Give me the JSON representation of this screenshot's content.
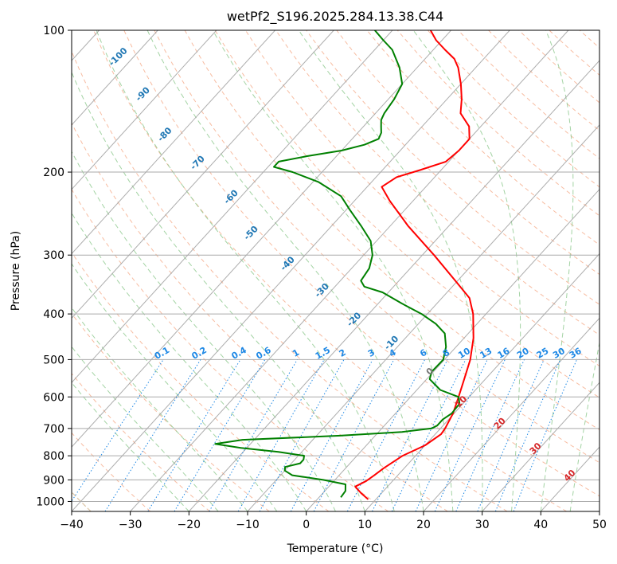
{
  "chart_data": {
    "type": "line",
    "subtype": "skew-t log-p",
    "title": "wetPf2_S196.2025.284.13.38.C44",
    "xlabel": "Temperature (°C)",
    "ylabel": "Pressure (hPa)",
    "xlim": [
      -40,
      50
    ],
    "ylim": [
      1050,
      100
    ],
    "y_scale": "log",
    "grid": true,
    "x_ticks": [
      "−40",
      "−30",
      "−20",
      "−10",
      "0",
      "10",
      "20",
      "30",
      "40",
      "50"
    ],
    "y_ticks": [
      "100",
      "200",
      "300",
      "400",
      "500",
      "600",
      "700",
      "800",
      "900",
      "1000"
    ],
    "colors": {
      "temperature": "#ff0000",
      "dewpoint": "#008000",
      "dry_adiabats": "#f4a582",
      "moist_adiabats": "#8cc88c",
      "mixing_ratio": "#1e88e5",
      "isotherms": "#999999",
      "pseudo_adiabat": "#d2b48c"
    },
    "series": [
      {
        "name": "",
        "role": "temperature",
        "points": [
          {
            "p": 990,
            "t": 8.7
          },
          {
            "p": 960,
            "t": 6.5
          },
          {
            "p": 930,
            "t": 4.5
          },
          {
            "p": 905,
            "t": 5.5
          },
          {
            "p": 880,
            "t": 6.0
          },
          {
            "p": 850,
            "t": 6.5
          },
          {
            "p": 800,
            "t": 7.8
          },
          {
            "p": 760,
            "t": 10.0
          },
          {
            "p": 720,
            "t": 11.0
          },
          {
            "p": 700,
            "t": 10.8
          },
          {
            "p": 650,
            "t": 9.8
          },
          {
            "p": 600,
            "t": 8.2
          },
          {
            "p": 550,
            "t": 6.4
          },
          {
            "p": 500,
            "t": 4.4
          },
          {
            "p": 450,
            "t": 1.6
          },
          {
            "p": 400,
            "t": -2.2
          },
          {
            "p": 370,
            "t": -5.3
          },
          {
            "p": 340,
            "t": -10.4
          },
          {
            "p": 300,
            "t": -18.0
          },
          {
            "p": 260,
            "t": -27.0
          },
          {
            "p": 230,
            "t": -34.0
          },
          {
            "p": 215,
            "t": -37.5
          },
          {
            "p": 205,
            "t": -36.5
          },
          {
            "p": 198,
            "t": -33.6
          },
          {
            "p": 190,
            "t": -30.5
          },
          {
            "p": 180,
            "t": -30.0
          },
          {
            "p": 170,
            "t": -30.0
          },
          {
            "p": 160,
            "t": -32.0
          },
          {
            "p": 150,
            "t": -35.5
          },
          {
            "p": 140,
            "t": -37.5
          },
          {
            "p": 130,
            "t": -40.0
          },
          {
            "p": 120,
            "t": -43.0
          },
          {
            "p": 115,
            "t": -45.0
          },
          {
            "p": 110,
            "t": -48.0
          },
          {
            "p": 105,
            "t": -51.0
          },
          {
            "p": 100,
            "t": -53.5
          }
        ]
      },
      {
        "name": "",
        "role": "dewpoint",
        "points": [
          {
            "p": 980,
            "t": 3.7
          },
          {
            "p": 950,
            "t": 3.5
          },
          {
            "p": 920,
            "t": 2.5
          },
          {
            "p": 900,
            "t": -2.0
          },
          {
            "p": 880,
            "t": -8.0
          },
          {
            "p": 860,
            "t": -10.0
          },
          {
            "p": 845,
            "t": -10.5
          },
          {
            "p": 830,
            "t": -8.5
          },
          {
            "p": 815,
            "t": -8.5
          },
          {
            "p": 800,
            "t": -9.0
          },
          {
            "p": 785,
            "t": -14.0
          },
          {
            "p": 770,
            "t": -21.0
          },
          {
            "p": 755,
            "t": -26.0
          },
          {
            "p": 740,
            "t": -22.0
          },
          {
            "p": 725,
            "t": -6.0
          },
          {
            "p": 712,
            "t": 4.0
          },
          {
            "p": 700,
            "t": 8.5
          },
          {
            "p": 690,
            "t": 9.0
          },
          {
            "p": 670,
            "t": 9.0
          },
          {
            "p": 650,
            "t": 9.6
          },
          {
            "p": 620,
            "t": 9.4
          },
          {
            "p": 600,
            "t": 8.2
          },
          {
            "p": 580,
            "t": 4.0
          },
          {
            "p": 550,
            "t": 0.5
          },
          {
            "p": 530,
            "t": -0.3
          },
          {
            "p": 500,
            "t": -0.2
          },
          {
            "p": 470,
            "t": -1.7
          },
          {
            "p": 440,
            "t": -4.0
          },
          {
            "p": 420,
            "t": -7.0
          },
          {
            "p": 400,
            "t": -11.0
          },
          {
            "p": 380,
            "t": -16.0
          },
          {
            "p": 360,
            "t": -21.0
          },
          {
            "p": 350,
            "t": -25.0
          },
          {
            "p": 340,
            "t": -26.5
          },
          {
            "p": 320,
            "t": -27.0
          },
          {
            "p": 300,
            "t": -28.5
          },
          {
            "p": 280,
            "t": -31.0
          },
          {
            "p": 260,
            "t": -35.0
          },
          {
            "p": 240,
            "t": -39.5
          },
          {
            "p": 225,
            "t": -43.0
          },
          {
            "p": 210,
            "t": -49.0
          },
          {
            "p": 200,
            "t": -55.0
          },
          {
            "p": 195,
            "t": -59.0
          },
          {
            "p": 190,
            "t": -59.0
          },
          {
            "p": 185,
            "t": -55.0
          },
          {
            "p": 180,
            "t": -50.0
          },
          {
            "p": 175,
            "t": -47.0
          },
          {
            "p": 170,
            "t": -45.5
          },
          {
            "p": 165,
            "t": -46.0
          },
          {
            "p": 160,
            "t": -47.0
          },
          {
            "p": 155,
            "t": -48.0
          },
          {
            "p": 150,
            "t": -48.5
          },
          {
            "p": 140,
            "t": -49.0
          },
          {
            "p": 130,
            "t": -50.0
          },
          {
            "p": 120,
            "t": -53.0
          },
          {
            "p": 110,
            "t": -57.0
          },
          {
            "p": 105,
            "t": -60.0
          },
          {
            "p": 100,
            "t": -63.0
          }
        ]
      }
    ],
    "moist_adiabat_labels": [
      {
        "text": "-100",
        "p": 115,
        "t": -102
      },
      {
        "text": "-90",
        "p": 138,
        "t": -92
      },
      {
        "text": "-80",
        "p": 168,
        "t": -82
      },
      {
        "text": "-70",
        "p": 193,
        "t": -72
      },
      {
        "text": "-60",
        "p": 228,
        "t": -61
      },
      {
        "text": "-50",
        "p": 272,
        "t": -52
      },
      {
        "text": "-40",
        "p": 316,
        "t": -41
      },
      {
        "text": "-30",
        "p": 360,
        "t": -31
      },
      {
        "text": "-20",
        "p": 415,
        "t": -21
      },
      {
        "text": "-10",
        "p": 465,
        "t": -11
      },
      {
        "text": "0",
        "p": 535,
        "t": 0
      }
    ],
    "dry_adiabat_labels": [
      {
        "text": "10",
        "p": 620,
        "t": 10
      },
      {
        "text": "20",
        "p": 690,
        "t": 20
      },
      {
        "text": "30",
        "p": 780,
        "t": 30
      },
      {
        "text": "40",
        "p": 890,
        "t": 40
      }
    ],
    "mixing_ratio_labels": [
      "0.1",
      "0.2",
      "0.4",
      "0.6",
      "1",
      "1.5",
      "2",
      "3",
      "4",
      "6",
      "8",
      "10",
      "13",
      "16",
      "20",
      "25",
      "30",
      "36"
    ]
  }
}
